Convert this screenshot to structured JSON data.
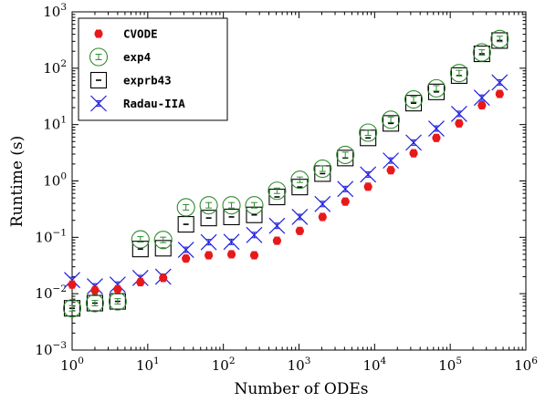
{
  "chart_data": {
    "type": "scatter",
    "xlabel": "Number of ODEs",
    "ylabel": "Runtime (s)",
    "x_scale": "log",
    "y_scale": "log",
    "xlim": [
      1,
      1000000
    ],
    "ylim": [
      0.001,
      1000
    ],
    "x_ticks": [
      {
        "value": 1,
        "base": "10",
        "exp": "0"
      },
      {
        "value": 10,
        "base": "10",
        "exp": "1"
      },
      {
        "value": 100,
        "base": "10",
        "exp": "2"
      },
      {
        "value": 1000,
        "base": "10",
        "exp": "3"
      },
      {
        "value": 10000,
        "base": "10",
        "exp": "4"
      },
      {
        "value": 100000,
        "base": "10",
        "exp": "5"
      },
      {
        "value": 1000000,
        "base": "10",
        "exp": "6"
      }
    ],
    "y_ticks": [
      {
        "value": 0.001,
        "base": "10",
        "exp": "−3"
      },
      {
        "value": 0.01,
        "base": "10",
        "exp": "−2"
      },
      {
        "value": 0.1,
        "base": "10",
        "exp": "−1"
      },
      {
        "value": 1,
        "base": "10",
        "exp": "0"
      },
      {
        "value": 10,
        "base": "10",
        "exp": "1"
      },
      {
        "value": 100,
        "base": "10",
        "exp": "2"
      },
      {
        "value": 1000,
        "base": "10",
        "exp": "3"
      }
    ],
    "legend_position": "top-left",
    "grid": false,
    "x": [
      1,
      2,
      4,
      8,
      16,
      32,
      64,
      128,
      256,
      512,
      1024,
      2048,
      4096,
      8192,
      16384,
      32768,
      65536,
      131072,
      262144,
      450000
    ],
    "series": [
      {
        "name": "CVODE",
        "marker": "dot",
        "color": "#e8191b",
        "values": [
          0.0145,
          0.0115,
          0.012,
          0.016,
          0.019,
          0.042,
          0.048,
          0.05,
          0.048,
          0.087,
          0.13,
          0.23,
          0.43,
          0.79,
          1.55,
          3.1,
          5.8,
          10.5,
          22,
          35
        ]
      },
      {
        "name": "exp4",
        "marker": "circle",
        "color": "#2e8b2e",
        "values": [
          0.0055,
          0.0068,
          0.0073,
          0.092,
          0.09,
          0.34,
          0.37,
          0.37,
          0.37,
          0.67,
          1.05,
          1.65,
          2.9,
          7.2,
          12.2,
          28,
          44,
          82,
          190,
          330
        ]
      },
      {
        "name": "exprb43",
        "marker": "square",
        "color": "#000000",
        "values": [
          0.0055,
          0.0068,
          0.0073,
          0.062,
          0.064,
          0.17,
          0.22,
          0.23,
          0.25,
          0.52,
          0.78,
          1.35,
          2.55,
          5.8,
          10.5,
          24,
          38,
          74,
          180,
          310
        ]
      },
      {
        "name": "Radau-IIA",
        "marker": "x",
        "color": "#1f1fe0",
        "values": [
          0.0175,
          0.0135,
          0.0145,
          0.019,
          0.02,
          0.06,
          0.082,
          0.083,
          0.11,
          0.16,
          0.23,
          0.39,
          0.72,
          1.3,
          2.3,
          4.8,
          8.5,
          15.5,
          30,
          56
        ]
      }
    ]
  }
}
